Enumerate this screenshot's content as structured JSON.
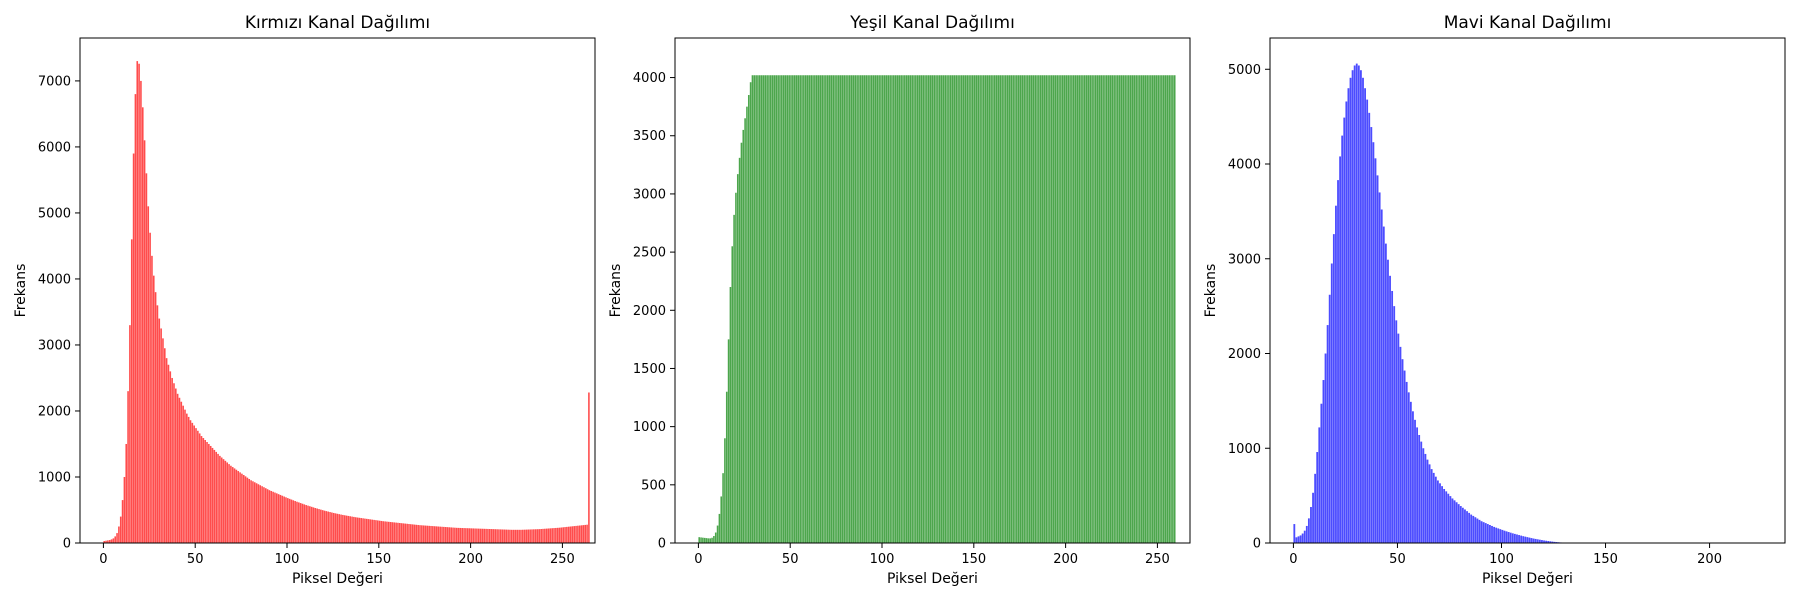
{
  "chart_data": [
    {
      "type": "bar",
      "title": "Kırmızı Kanal Dağılımı",
      "xlabel": "Piksel Değeri",
      "ylabel": "Frekans",
      "color": "#ff0000",
      "alpha": 0.7,
      "xlim": [
        -12.75,
        267.75
      ],
      "ylim": [
        0,
        7650
      ],
      "xticks": [
        0,
        50,
        100,
        150,
        200,
        250
      ],
      "yticks": [
        0,
        1000,
        2000,
        3000,
        4000,
        5000,
        6000,
        7000
      ],
      "x_start": 0,
      "bin_width": 1,
      "values": [
        30,
        35,
        40,
        45,
        55,
        70,
        100,
        150,
        250,
        400,
        650,
        1000,
        1500,
        2300,
        3300,
        4600,
        5900,
        6800,
        7300,
        7260,
        7000,
        6600,
        6100,
        5600,
        5100,
        4700,
        4350,
        4050,
        3800,
        3600,
        3400,
        3250,
        3100,
        2950,
        2800,
        2700,
        2600,
        2500,
        2420,
        2340,
        2260,
        2200,
        2140,
        2080,
        2020,
        1960,
        1910,
        1860,
        1820,
        1780,
        1740,
        1700,
        1660,
        1620,
        1590,
        1560,
        1530,
        1500,
        1470,
        1440,
        1410,
        1380,
        1350,
        1320,
        1295,
        1270,
        1245,
        1220,
        1195,
        1170,
        1150,
        1130,
        1110,
        1090,
        1070,
        1050,
        1030,
        1010,
        990,
        970,
        950,
        935,
        920,
        905,
        890,
        875,
        860,
        845,
        830,
        815,
        800,
        788,
        776,
        764,
        752,
        740,
        728,
        716,
        704,
        692,
        680,
        669,
        658,
        647,
        636,
        625,
        615,
        605,
        595,
        585,
        575,
        566,
        557,
        548,
        539,
        530,
        522,
        514,
        506,
        498,
        490,
        483,
        476,
        469,
        462,
        455,
        449,
        443,
        437,
        431,
        425,
        420,
        415,
        410,
        405,
        400,
        395,
        390,
        386,
        382,
        378,
        374,
        370,
        366,
        362,
        358,
        354,
        350,
        346,
        342,
        338,
        334,
        330,
        327,
        324,
        321,
        318,
        315,
        312,
        309,
        306,
        303,
        300,
        297,
        294,
        291,
        288,
        285,
        282,
        279,
        276,
        273,
        270,
        268,
        266,
        264,
        262,
        260,
        258,
        256,
        254,
        252,
        250,
        248,
        246,
        244,
        242,
        240,
        238,
        236,
        234,
        232,
        230,
        229,
        228,
        227,
        226,
        225,
        224,
        223,
        222,
        221,
        220,
        219,
        218,
        217,
        216,
        215,
        214,
        213,
        212,
        211,
        210,
        209,
        208,
        207,
        206,
        205,
        204,
        203,
        202,
        201,
        200,
        200,
        200,
        200,
        200,
        200,
        201,
        202,
        203,
        204,
        205,
        206,
        207,
        208,
        209,
        210,
        212,
        214,
        216,
        218,
        220,
        222,
        224,
        226,
        228,
        230,
        232,
        235,
        238,
        241,
        244,
        247,
        250,
        253,
        256,
        259,
        262,
        265,
        268,
        271,
        274,
        277,
        2280
      ]
    },
    {
      "type": "bar",
      "title": "Yeşil Kanal Dağılımı",
      "xlabel": "Piksel Değeri",
      "ylabel": "Frekans",
      "color": "#008000",
      "alpha": 0.7,
      "xlim": [
        -12.75,
        267.75
      ],
      "ylim": [
        0,
        4340
      ],
      "xticks": [
        0,
        50,
        100,
        150,
        200,
        250
      ],
      "yticks": [
        0,
        500,
        1000,
        1500,
        2000,
        2500,
        3000,
        3500,
        4000
      ],
      "x_start": 0,
      "bin_width": 1,
      "values": [
        50,
        48,
        46,
        44,
        42,
        40,
        40,
        45,
        60,
        90,
        150,
        250,
        400,
        600,
        900,
        1300,
        1750,
        2200,
        2550,
        2820,
        3010,
        3170,
        3310,
        3440,
        3550,
        3650,
        3750,
        3850,
        3960,
        4020,
        4020,
        4020,
        4020,
        4020,
        4020,
        4020,
        4020,
        4020,
        4020,
        4020,
        4020,
        4020,
        4020,
        4020,
        4020,
        4020,
        4020,
        4020,
        4020,
        4020,
        4020,
        4020,
        4020,
        4020,
        4020,
        4020,
        4020,
        4020,
        4020,
        4020,
        4020,
        4020,
        4020,
        4020,
        4020,
        4020,
        4020,
        4020,
        4020,
        4020,
        4020,
        4020,
        4020,
        4020,
        4020,
        4020,
        4020,
        4020,
        4020,
        4020,
        4020,
        4020,
        4020,
        4020,
        4020,
        4020,
        4020,
        4020,
        4020,
        4020,
        4020,
        4020,
        4020,
        4020,
        4020,
        4020,
        4020,
        4020,
        4020,
        4020,
        4020,
        4020,
        4020,
        4020,
        4020,
        4020,
        4020,
        4020,
        4020,
        4020,
        4020,
        4020,
        4020,
        4020,
        4020,
        4020,
        4020,
        4020,
        4020,
        4020,
        4020,
        4020,
        4020,
        4020,
        4020,
        4020,
        4020,
        4020,
        4020,
        4020,
        4020,
        4020,
        4020,
        4020,
        4020,
        4020,
        4020,
        4020,
        4020,
        4020,
        4020,
        4020,
        4020,
        4020,
        4020,
        4020,
        4020,
        4020,
        4020,
        4020,
        4020,
        4020,
        4020,
        4020,
        4020,
        4020,
        4020,
        4020,
        4020,
        4020,
        4020,
        4020,
        4020,
        4020,
        4020,
        4020,
        4020,
        4020,
        4020,
        4020,
        4020,
        4020,
        4020,
        4020,
        4020,
        4020,
        4020,
        4020,
        4020,
        4020,
        4020,
        4020,
        4020,
        4020,
        4020,
        4020,
        4020,
        4020,
        4020,
        4020,
        4020,
        4020,
        4020,
        4020,
        4020,
        4020,
        4020,
        4020,
        4020,
        4020,
        4020,
        4020,
        4020,
        4020,
        4020,
        4020,
        4020,
        4020,
        4020,
        4020,
        4020,
        4020,
        4020,
        4020,
        4020,
        4020,
        4020,
        4020,
        4020,
        4020,
        4020,
        4020,
        4020,
        4020,
        4020,
        4020,
        4020,
        4020,
        4020,
        4020,
        4020,
        4020,
        4020,
        4020,
        4020,
        4020,
        4020,
        4020,
        4020,
        4020,
        4020,
        4020,
        4020,
        4020,
        4020,
        4020,
        4020,
        4020,
        4020,
        4020,
        4020,
        4020,
        4020,
        4020,
        4020,
        4020,
        4020,
        4020,
        4020,
        4020
      ]
    },
    {
      "type": "bar",
      "title": "Mavi Kanal Dağılımı",
      "xlabel": "Piksel Değeri",
      "ylabel": "Frekans",
      "color": "#0000ff",
      "alpha": 0.7,
      "xlim": [
        -11.25,
        236.25
      ],
      "ylim": [
        0,
        5330
      ],
      "xticks": [
        0,
        50,
        100,
        150,
        200
      ],
      "yticks": [
        0,
        1000,
        2000,
        3000,
        4000,
        5000
      ],
      "x_start": 0,
      "bin_width": 1,
      "values": [
        200,
        60,
        70,
        80,
        100,
        130,
        180,
        260,
        380,
        530,
        730,
        960,
        1220,
        1470,
        1720,
        2000,
        2300,
        2620,
        2950,
        3260,
        3560,
        3830,
        4080,
        4300,
        4490,
        4660,
        4800,
        4910,
        4990,
        5040,
        5060,
        5040,
        4990,
        4910,
        4800,
        4680,
        4540,
        4390,
        4230,
        4060,
        3880,
        3700,
        3520,
        3340,
        3160,
        2990,
        2820,
        2660,
        2500,
        2350,
        2210,
        2070,
        1940,
        1820,
        1700,
        1590,
        1490,
        1390,
        1300,
        1220,
        1140,
        1070,
        1000,
        940,
        880,
        830,
        780,
        740,
        700,
        660,
        630,
        600,
        570,
        545,
        520,
        495,
        470,
        450,
        430,
        410,
        390,
        372,
        354,
        336,
        318,
        300,
        286,
        272,
        258,
        244,
        230,
        220,
        210,
        200,
        190,
        180,
        170,
        162,
        154,
        146,
        138,
        130,
        123,
        116,
        109,
        102,
        96,
        90,
        84,
        78,
        72,
        67,
        62,
        57,
        52,
        47,
        43,
        39,
        35,
        31,
        27,
        24,
        21,
        18,
        15,
        12,
        10,
        8,
        6,
        4,
        3,
        2,
        1,
        1,
        0,
        0,
        0,
        0,
        0,
        0,
        0,
        0,
        0,
        0,
        0,
        0,
        0,
        0,
        0,
        0,
        0,
        0,
        0,
        0,
        0,
        0,
        0,
        0,
        0,
        0,
        0,
        0,
        0,
        0,
        0,
        0,
        0,
        0,
        0,
        0,
        0,
        0,
        0,
        0,
        0,
        0,
        0,
        0,
        0,
        0,
        0,
        0,
        0,
        0,
        0,
        0,
        0,
        0,
        0,
        0,
        0,
        0,
        0,
        0,
        0,
        0,
        0,
        0,
        0,
        0,
        0,
        0,
        0,
        0,
        0,
        0,
        0,
        0,
        0,
        0,
        0,
        0,
        0,
        0,
        0,
        0,
        0,
        0,
        0,
        0,
        0,
        0,
        0,
        0,
        0,
        0,
        0,
        0,
        0,
        0,
        0,
        0,
        0,
        0,
        0,
        0,
        0,
        0,
        0,
        0,
        0,
        0,
        0,
        0,
        0
      ]
    }
  ]
}
